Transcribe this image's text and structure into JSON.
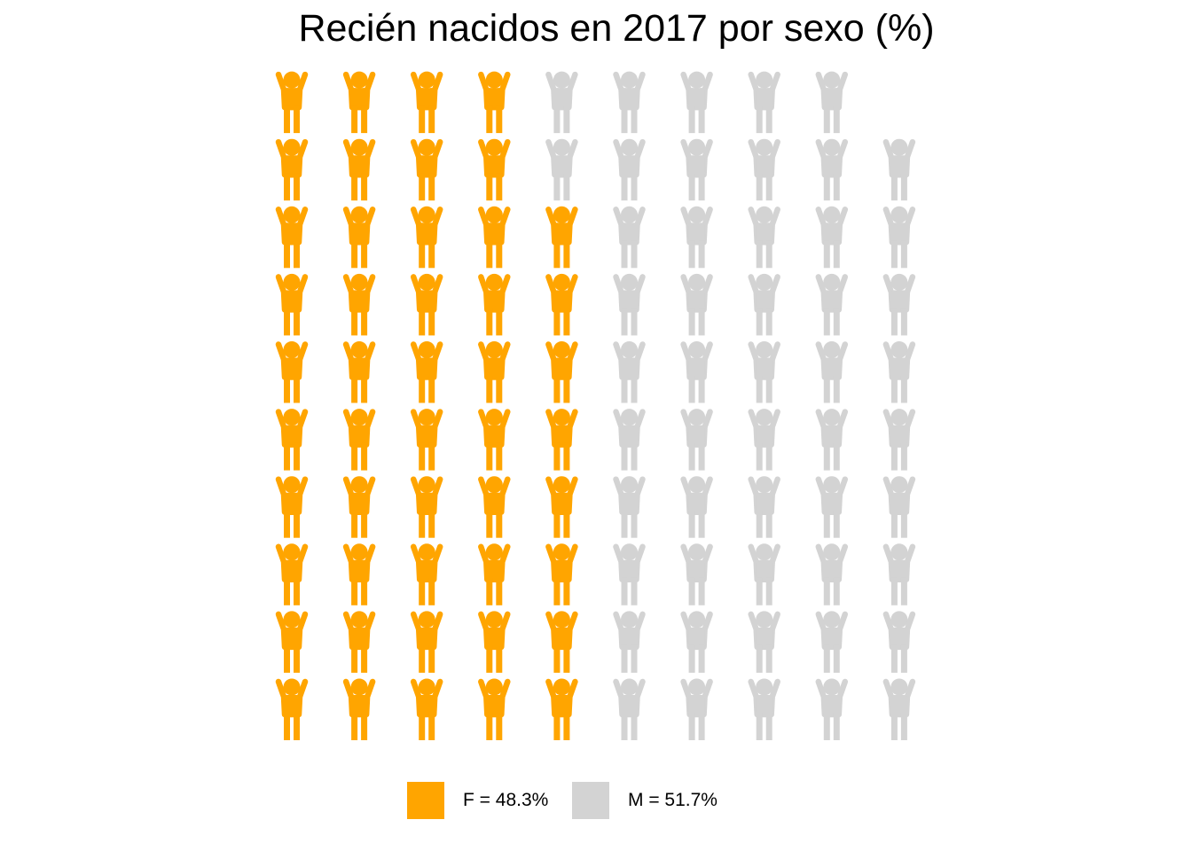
{
  "chart_data": {
    "type": "pictogram",
    "title": "Recién nacidos en 2017 por sexo (%)",
    "total_icons": 99,
    "rows": 10,
    "columns": 10,
    "fill_order": "column-major, bottom-to-top, left-to-right",
    "icon": "child-arms-up-icon",
    "series": [
      {
        "name": "F",
        "label": "F = 48.3%",
        "percent": 48.3,
        "icons": 48,
        "color": "#FFA500"
      },
      {
        "name": "M",
        "label": "M = 51.7%",
        "percent": 51.7,
        "icons": 51,
        "color": "#D3D3D3"
      }
    ],
    "legend_position": "bottom"
  }
}
